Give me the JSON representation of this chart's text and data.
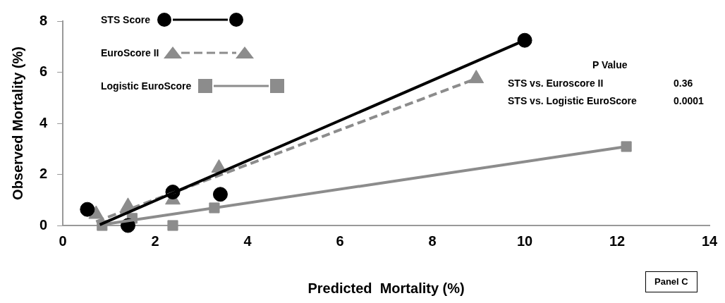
{
  "chart_data": {
    "type": "scatter",
    "xlabel": "Predicted  Mortality (%)",
    "ylabel": "Observed Mortality (%)",
    "xlim": [
      0,
      14
    ],
    "xticks": [
      0,
      2,
      4,
      6,
      8,
      10,
      12,
      14
    ],
    "ylim": [
      0,
      8
    ],
    "yticks": [
      0,
      2,
      4,
      6,
      8
    ],
    "grid": false,
    "legend": "top left",
    "series": [
      {
        "name": "STS Score",
        "type": "scatter",
        "marker": "circle",
        "color": "#000000",
        "x": [
          0.53,
          1.41,
          2.38,
          3.41,
          10.0
        ],
        "values": [
          0.63,
          0,
          1.31,
          1.22,
          7.25
        ]
      },
      {
        "type": "line",
        "line_style": "solid",
        "color": "#000000",
        "x": [
          0.8,
          10.0
        ],
        "values": [
          0.03,
          7.25
        ]
      },
      {
        "name": "EuroScore II",
        "type": "scatter",
        "marker": "triangle",
        "color": "#8c8c8c",
        "x": [
          0.72,
          1.41,
          2.38,
          3.38,
          8.95
        ],
        "values": [
          0.44,
          0.75,
          1.0,
          2.25,
          5.75
        ]
      },
      {
        "type": "line",
        "line_style": "dashed",
        "color": "#8c8c8c",
        "x": [
          0.72,
          8.95
        ],
        "values": [
          0.15,
          5.75
        ]
      },
      {
        "name": "Logistic EuroScore",
        "type": "scatter",
        "marker": "square",
        "color": "#8c8c8c",
        "x": [
          0.85,
          1.5,
          2.38,
          3.28,
          12.2
        ],
        "values": [
          0,
          0.28,
          0,
          0.69,
          3.09
        ]
      },
      {
        "type": "line",
        "line_style": "solid",
        "color": "#8c8c8c",
        "x": [
          0.8,
          12.2
        ],
        "values": [
          0.02,
          3.09
        ]
      }
    ],
    "annotations": [
      "P Value",
      "STS vs. Euroscore II",
      "0.36",
      "STS vs. Logistic EuroScore",
      "0.0001",
      "Panel C"
    ]
  }
}
